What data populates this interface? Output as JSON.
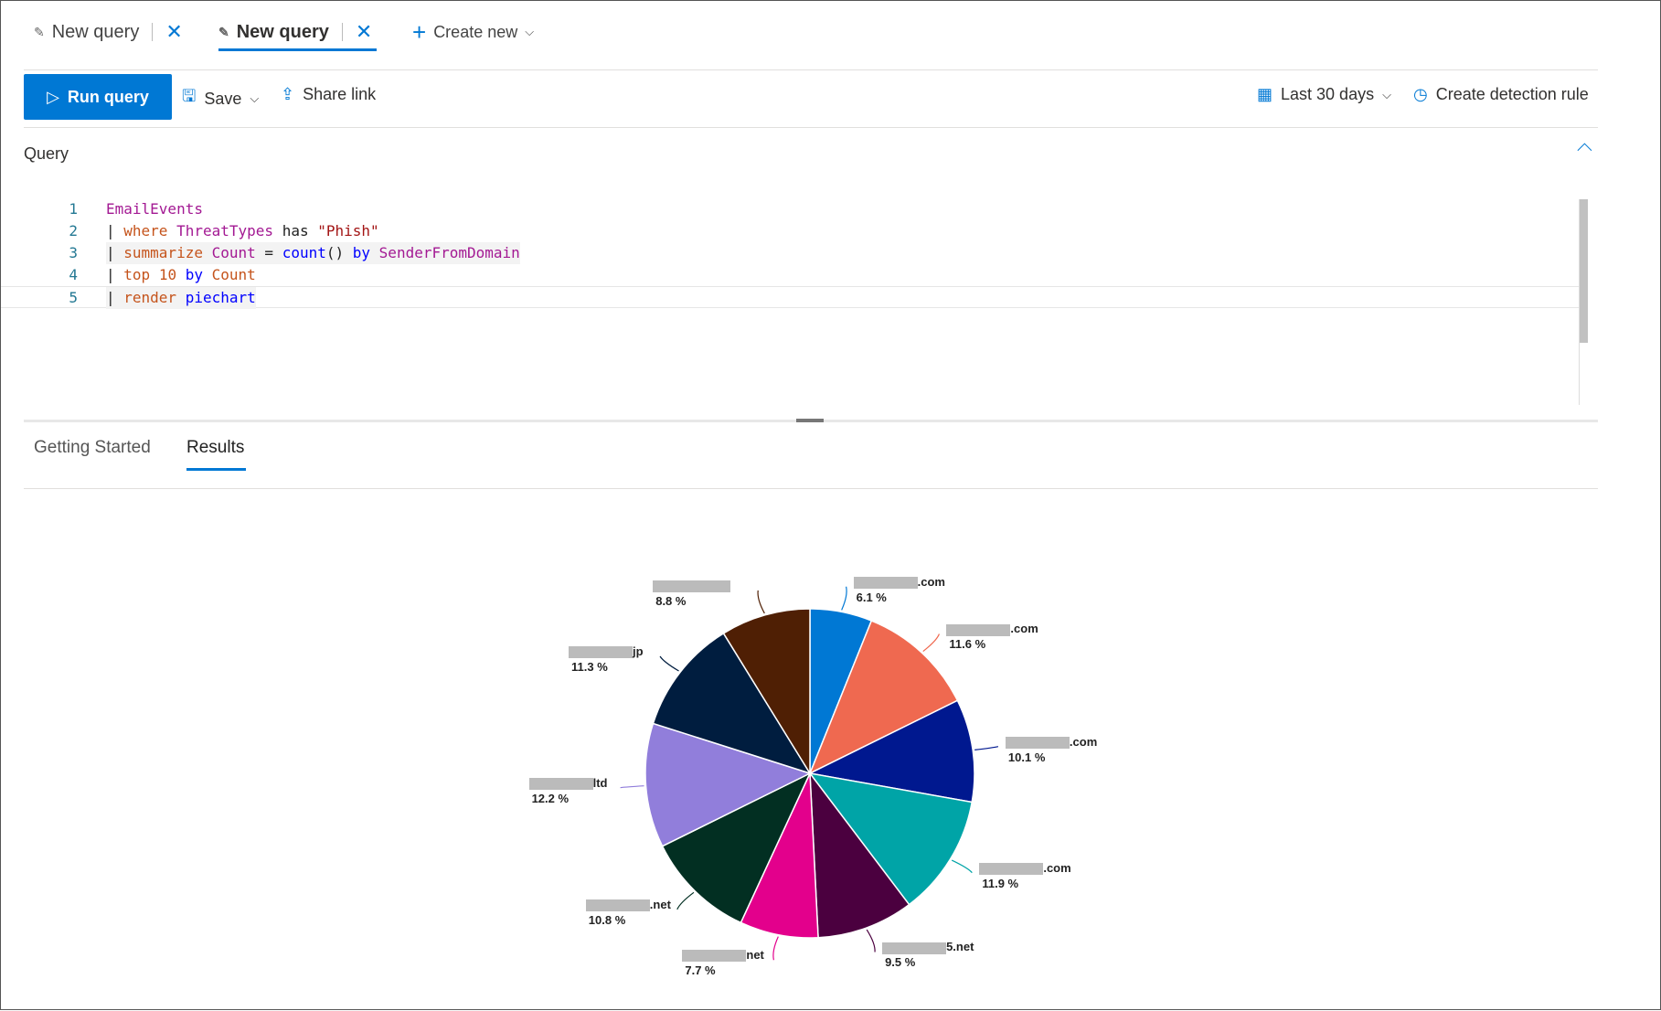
{
  "tabs": [
    {
      "label": "New query",
      "active": false
    },
    {
      "label": "New query",
      "active": true
    }
  ],
  "create_new": "Create new",
  "toolbar": {
    "run": "Run query",
    "save": "Save",
    "share": "Share link",
    "time_range": "Last 30 days",
    "detection": "Create detection rule"
  },
  "query_section": {
    "title": "Query"
  },
  "code": [
    {
      "n": "1",
      "text": "EmailEvents"
    },
    {
      "n": "2",
      "text": "| where ThreatTypes has \"Phish\""
    },
    {
      "n": "3",
      "text": "| summarize Count = count() by SenderFromDomain"
    },
    {
      "n": "4",
      "text": "| top 10 by Count"
    },
    {
      "n": "5",
      "text": "| render piechart"
    }
  ],
  "result_tabs": [
    {
      "label": "Getting Started",
      "active": false
    },
    {
      "label": "Results",
      "active": true
    }
  ],
  "chart_data": {
    "type": "pie",
    "categories": [
      "…com",
      "…com",
      "…com",
      "…com",
      "…5.net",
      "…net",
      "…net",
      "…ltd",
      "…jp",
      "(redacted)"
    ],
    "label_suffix": [
      ".com",
      ".com",
      ".com",
      ".com",
      "5.net",
      "net",
      ".net",
      "ltd",
      "jp",
      ""
    ],
    "values": [
      6.1,
      11.6,
      10.1,
      11.9,
      9.5,
      7.7,
      10.8,
      12.2,
      11.3,
      8.8
    ],
    "value_labels": [
      "6.1 %",
      "11.6 %",
      "10.1 %",
      "11.9 %",
      "9.5 %",
      "7.7 %",
      "10.8 %",
      "12.2 %",
      "11.3 %",
      "8.8 %"
    ],
    "colors": [
      "#0078d4",
      "#ef6950",
      "#00188f",
      "#00a4a7",
      "#4b003f",
      "#e3008c",
      "#022f22",
      "#917edb",
      "#001d3f",
      "#4f1f04"
    ]
  }
}
